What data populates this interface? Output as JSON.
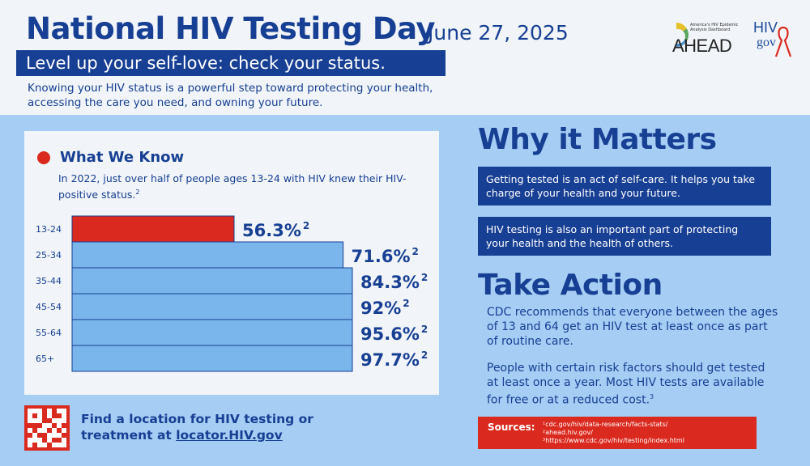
{
  "header": {
    "title": "National HIV Testing Day",
    "date": "June 27, 2025",
    "tagline": "Level up your self-love: check your status.",
    "intro": "Knowing your HIV status is a powerful step toward protecting your health, accessing the care you need, and owning your future."
  },
  "logos": {
    "ahead_small": "America's HIV Epidemic Analysis Dashboard",
    "ahead_word": "AHEAD",
    "hiv_top": "HIV",
    "hiv_bottom": "gov"
  },
  "know": {
    "title": "What We Know",
    "text": "In 2022, just over half of people ages 13-24 with HIV knew their HIV-positive status.",
    "text_sup": "2"
  },
  "chart_data": {
    "type": "bar",
    "orientation": "horizontal",
    "categories": [
      "13-24",
      "25-34",
      "35-44",
      "45-54",
      "55-64",
      "65+"
    ],
    "values": [
      56.3,
      71.6,
      84.3,
      92,
      95.6,
      97.7
    ],
    "labels": [
      "56.3%",
      "71.6%",
      "84.3%",
      "92%",
      "95.6%",
      "97.7%"
    ],
    "label_sup": "2",
    "unit": "%",
    "highlight_index": 0,
    "colors": {
      "highlight": "#da2a1f",
      "default": "#7ab6ec",
      "outline": "#173f93",
      "label": "#173f93"
    },
    "xlim": [
      0,
      100
    ],
    "grid": false,
    "legend": "none"
  },
  "why": {
    "title": "Why it Matters",
    "box1": "Getting tested is an act of self-care. It helps you take charge of your health and your future.",
    "box2": "HIV testing is also an important part of protecting your health and the health of others."
  },
  "action": {
    "title": "Take Action",
    "text1": "CDC recommends that everyone between the ages of 13 and 64 get an HIV test at least once as part of routine care.",
    "text2": "People with certain risk factors should get tested at least once a year. Most HIV tests are available for free or at a reduced cost.",
    "text2_sup": "3"
  },
  "sources": {
    "label": "Sources:",
    "items": [
      "¹cdc.gov/hiv/data-research/facts-stats/",
      "²ahead.hiv.gov/",
      "³https://www.cdc.gov/hiv/testing/index.html"
    ]
  },
  "footer": {
    "find_line1": "Find a location for HIV testing or",
    "find_prefix": "treatment at ",
    "find_link": "locator.HIV.gov"
  },
  "colors": {
    "navy": "#173f93",
    "light_blue": "#a6cdf3",
    "red": "#da2a1f",
    "bg": "#f1f4f8"
  }
}
